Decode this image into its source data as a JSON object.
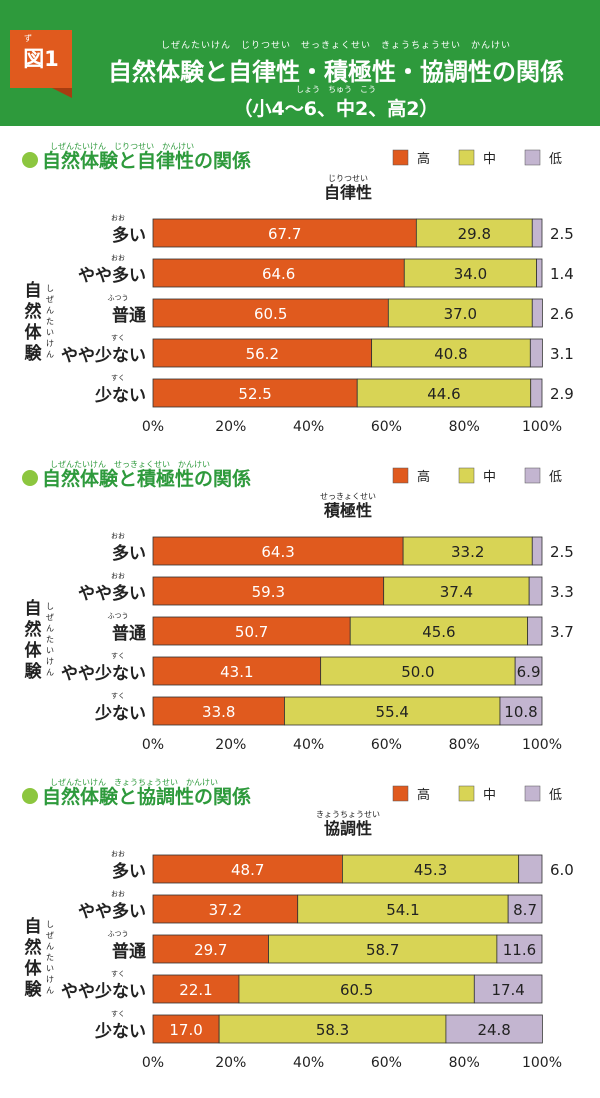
{
  "figure": {
    "badge": "図1",
    "badge_ruby": "ず",
    "title": "自然体験と自律性・積極性・協調性の関係",
    "title_ruby": "しぜんたいけん　じりつせい　せっきょくせい　きょうちょうせい　かんけい",
    "subtitle": "（小4～6、中2、高2）",
    "subtitle_ruby": "しょう　ちゅう　こう"
  },
  "colors": {
    "header_green": "#2e9a3c",
    "badge_orange": "#e05a1e",
    "high": "#e05a1e",
    "mid": "#d8d455",
    "low": "#c3b5d0",
    "title_text": "#2e9a3c"
  },
  "chart_data": [
    {
      "type": "bar",
      "orientation": "horizontal-stacked",
      "title": "自然体験と自律性の関係",
      "title_ruby": "しぜんたいけん　じりつせい　かんけい",
      "measure": "自律性",
      "measure_ruby": "じりつせい",
      "ylabel": "自然体験",
      "ylabel_ruby": "しぜんたいけん",
      "legend": [
        "高",
        "中",
        "低"
      ],
      "legend_position": "top-right",
      "categories": [
        "多い",
        "やや多い",
        "普通",
        "やや少ない",
        "少ない"
      ],
      "category_ruby": [
        "おお",
        "おお",
        "ふつう",
        "すく",
        "すく"
      ],
      "series": [
        {
          "name": "高",
          "values": [
            67.7,
            64.6,
            60.5,
            56.2,
            52.5
          ]
        },
        {
          "name": "中",
          "values": [
            29.8,
            34.0,
            37.0,
            40.8,
            44.6
          ]
        },
        {
          "name": "低",
          "values": [
            2.5,
            1.4,
            2.6,
            3.1,
            2.9
          ]
        }
      ],
      "xlim": [
        0,
        100
      ],
      "xticks": [
        "0%",
        "20%",
        "40%",
        "60%",
        "80%",
        "100%"
      ]
    },
    {
      "type": "bar",
      "orientation": "horizontal-stacked",
      "title": "自然体験と積極性の関係",
      "title_ruby": "しぜんたいけん　せっきょくせい　かんけい",
      "measure": "積極性",
      "measure_ruby": "せっきょくせい",
      "ylabel": "自然体験",
      "ylabel_ruby": "しぜんたいけん",
      "legend": [
        "高",
        "中",
        "低"
      ],
      "legend_position": "top-right",
      "categories": [
        "多い",
        "やや多い",
        "普通",
        "やや少ない",
        "少ない"
      ],
      "category_ruby": [
        "おお",
        "おお",
        "ふつう",
        "すく",
        "すく"
      ],
      "series": [
        {
          "name": "高",
          "values": [
            64.3,
            59.3,
            50.7,
            43.1,
            33.8
          ]
        },
        {
          "name": "中",
          "values": [
            33.2,
            37.4,
            45.6,
            50.0,
            55.4
          ]
        },
        {
          "name": "低",
          "values": [
            2.5,
            3.3,
            3.7,
            6.9,
            10.8
          ]
        }
      ],
      "xlim": [
        0,
        100
      ],
      "xticks": [
        "0%",
        "20%",
        "40%",
        "60%",
        "80%",
        "100%"
      ]
    },
    {
      "type": "bar",
      "orientation": "horizontal-stacked",
      "title": "自然体験と協調性の関係",
      "title_ruby": "しぜんたいけん　きょうちょうせい　かんけい",
      "measure": "協調性",
      "measure_ruby": "きょうちょうせい",
      "ylabel": "自然体験",
      "ylabel_ruby": "しぜんたいけん",
      "legend": [
        "高",
        "中",
        "低"
      ],
      "legend_position": "top-right",
      "categories": [
        "多い",
        "やや多い",
        "普通",
        "やや少ない",
        "少ない"
      ],
      "category_ruby": [
        "おお",
        "おお",
        "ふつう",
        "すく",
        "すく"
      ],
      "series": [
        {
          "name": "高",
          "values": [
            48.7,
            37.2,
            29.7,
            22.1,
            17.0
          ]
        },
        {
          "name": "中",
          "values": [
            45.3,
            54.1,
            58.7,
            60.5,
            58.3
          ]
        },
        {
          "name": "低",
          "values": [
            6.0,
            8.7,
            11.6,
            17.4,
            24.8
          ]
        }
      ],
      "xlim": [
        0,
        100
      ],
      "xticks": [
        "0%",
        "20%",
        "40%",
        "60%",
        "80%",
        "100%"
      ]
    }
  ]
}
